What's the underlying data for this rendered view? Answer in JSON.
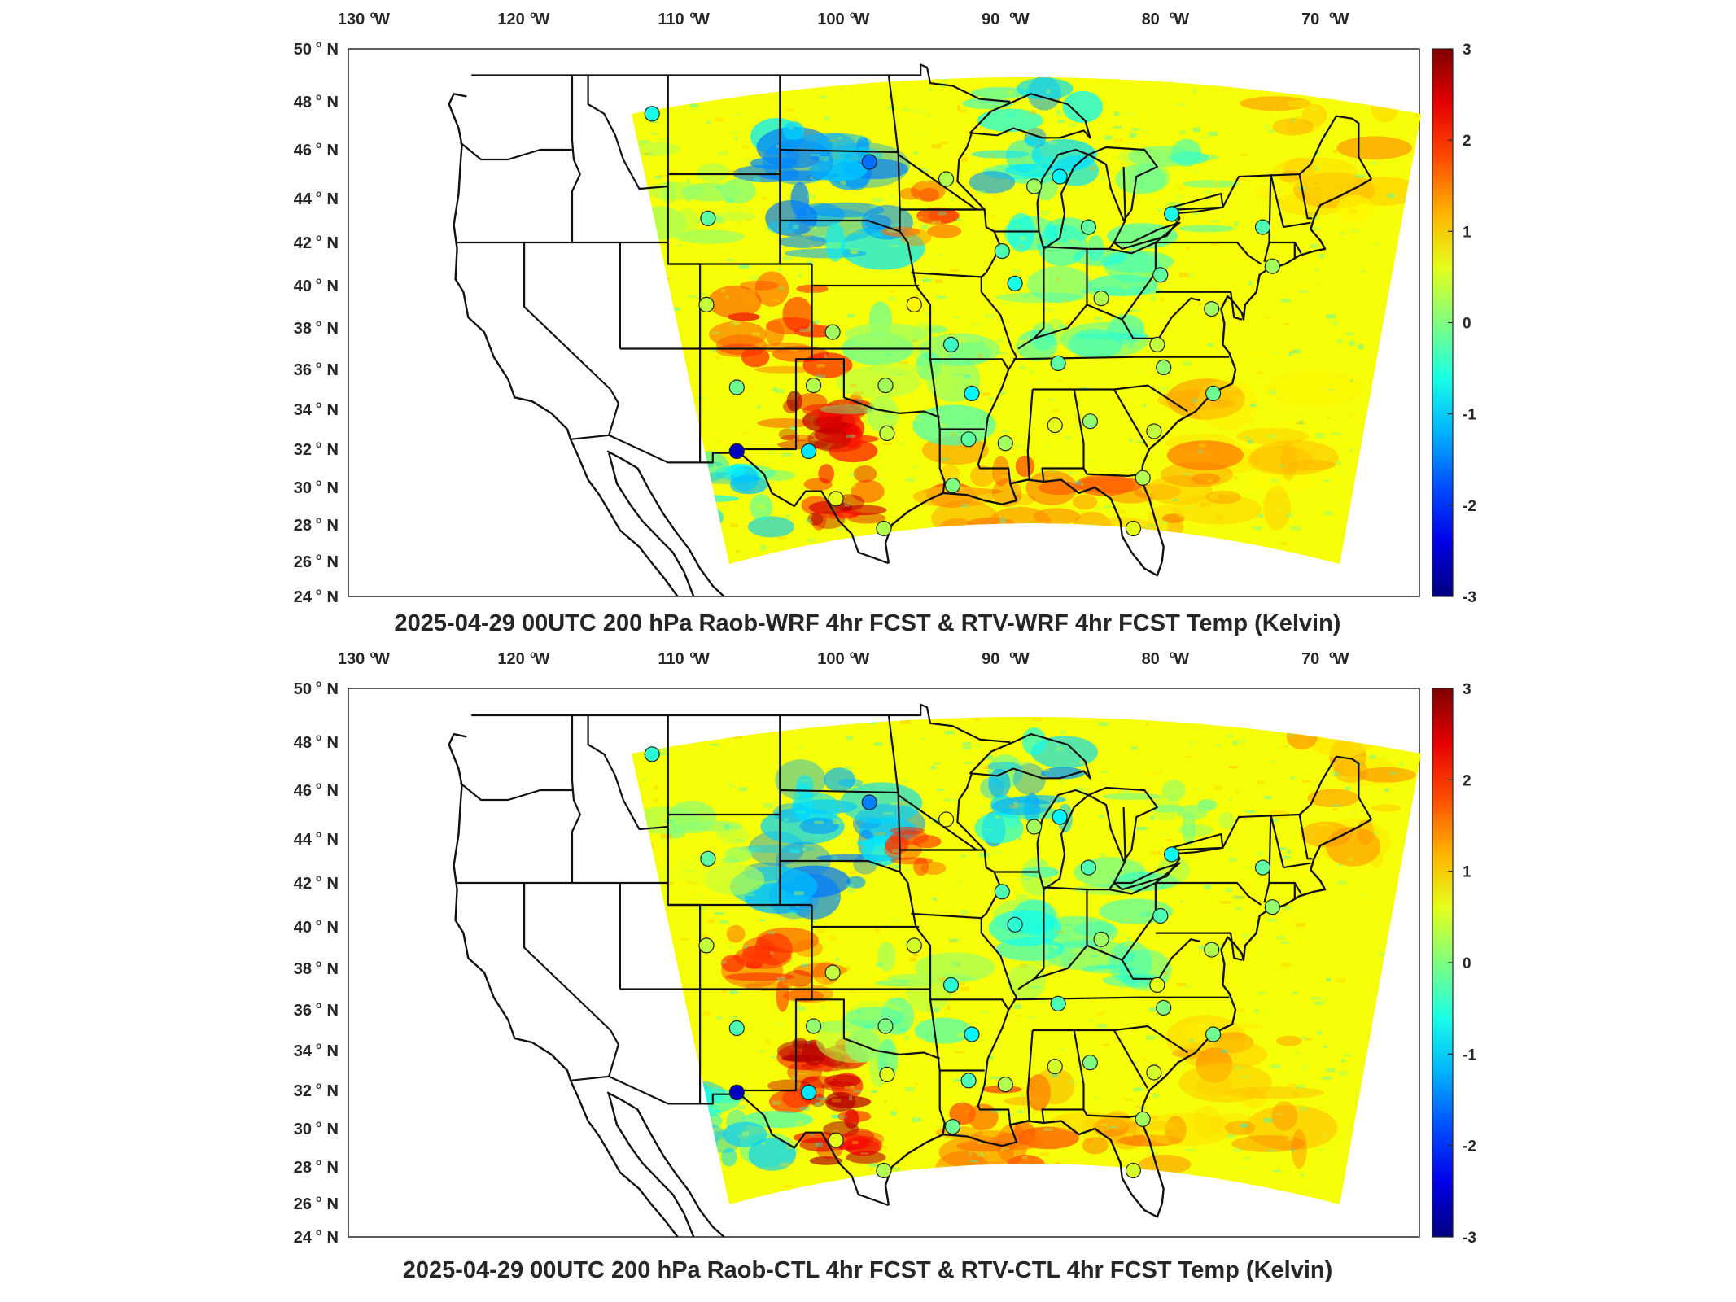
{
  "panels": [
    {
      "title": "2025-04-29 00UTC 200 hPa Raob-WRF 4hr FCST & RTV-WRF 4hr FCST Temp (Kelvin)",
      "stations": [
        {
          "lon": -112.0,
          "lat": 47.5,
          "v": -0.6
        },
        {
          "lon": -98.4,
          "lat": 45.5,
          "v": -1.6
        },
        {
          "lon": -93.6,
          "lat": 44.8,
          "v": 0.3
        },
        {
          "lon": -108.5,
          "lat": 43.1,
          "v": -0.2
        },
        {
          "lon": -90.1,
          "lat": 41.6,
          "v": -0.3
        },
        {
          "lon": -108.6,
          "lat": 39.1,
          "v": 0.4
        },
        {
          "lon": -95.6,
          "lat": 39.1,
          "v": 0.8
        },
        {
          "lon": -100.7,
          "lat": 37.8,
          "v": 0.2
        },
        {
          "lon": -89.3,
          "lat": 40.1,
          "v": -0.6
        },
        {
          "lon": -86.5,
          "lat": 44.9,
          "v": -0.8
        },
        {
          "lon": -84.7,
          "lat": 42.7,
          "v": -0.2
        },
        {
          "lon": -83.9,
          "lat": 39.4,
          "v": 0.3
        },
        {
          "lon": -80.2,
          "lat": 40.5,
          "v": -0.2
        },
        {
          "lon": -79.5,
          "lat": 43.3,
          "v": -0.6
        },
        {
          "lon": -73.8,
          "lat": 42.7,
          "v": -0.3
        },
        {
          "lon": -73.2,
          "lat": 40.9,
          "v": 0.2
        },
        {
          "lon": -77.0,
          "lat": 38.9,
          "v": 0.2
        },
        {
          "lon": -80.4,
          "lat": 37.2,
          "v": 0.4
        },
        {
          "lon": -86.6,
          "lat": 36.3,
          "v": -0.2
        },
        {
          "lon": -80.0,
          "lat": 36.1,
          "v": 0.1
        },
        {
          "lon": -76.9,
          "lat": 34.8,
          "v": -0.1
        },
        {
          "lon": -84.6,
          "lat": 33.4,
          "v": 0.1
        },
        {
          "lon": -86.8,
          "lat": 33.2,
          "v": 0.6
        },
        {
          "lon": -89.9,
          "lat": 32.3,
          "v": 0.2
        },
        {
          "lon": -92.2,
          "lat": 32.5,
          "v": -0.2
        },
        {
          "lon": -93.3,
          "lat": 37.2,
          "v": -0.4
        },
        {
          "lon": -92.0,
          "lat": 34.8,
          "v": -0.8
        },
        {
          "lon": -97.4,
          "lat": 35.2,
          "v": 0.2
        },
        {
          "lon": -97.3,
          "lat": 32.8,
          "v": 0.4
        },
        {
          "lon": -97.5,
          "lat": 27.8,
          "v": 0.3
        },
        {
          "lon": -93.2,
          "lat": 30.1,
          "v": 0.0
        },
        {
          "lon": -81.3,
          "lat": 30.5,
          "v": 0.3
        },
        {
          "lon": -81.9,
          "lat": 27.8,
          "v": 0.6
        },
        {
          "lon": -80.6,
          "lat": 32.9,
          "v": 0.4
        },
        {
          "lon": -101.9,
          "lat": 35.2,
          "v": 0.3
        },
        {
          "lon": -102.2,
          "lat": 31.9,
          "v": -0.9
        },
        {
          "lon": -100.5,
          "lat": 29.4,
          "v": 0.6
        },
        {
          "lon": -106.7,
          "lat": 31.9,
          "v": -2.6
        },
        {
          "lon": -106.7,
          "lat": 35.1,
          "v": -0.1
        },
        {
          "lon": -88.1,
          "lat": 44.5,
          "v": 0.2
        }
      ]
    },
    {
      "title": "2025-04-29 00UTC 200 hPa Raob-CTL 4hr FCST & RTV-CTL 4hr FCST Temp (Kelvin)",
      "stations": [
        {
          "lon": -112.0,
          "lat": 47.5,
          "v": -0.5
        },
        {
          "lon": -98.4,
          "lat": 45.5,
          "v": -1.5
        },
        {
          "lon": -93.6,
          "lat": 44.8,
          "v": 0.7
        },
        {
          "lon": -108.5,
          "lat": 43.1,
          "v": -0.2
        },
        {
          "lon": -90.1,
          "lat": 41.6,
          "v": -0.3
        },
        {
          "lon": -108.6,
          "lat": 39.1,
          "v": 0.4
        },
        {
          "lon": -95.6,
          "lat": 39.1,
          "v": 0.5
        },
        {
          "lon": -100.7,
          "lat": 37.8,
          "v": 0.4
        },
        {
          "lon": -89.3,
          "lat": 40.1,
          "v": -0.5
        },
        {
          "lon": -86.5,
          "lat": 44.9,
          "v": -0.8
        },
        {
          "lon": -84.7,
          "lat": 42.7,
          "v": -0.3
        },
        {
          "lon": -83.9,
          "lat": 39.4,
          "v": 0.2
        },
        {
          "lon": -80.2,
          "lat": 40.5,
          "v": -0.3
        },
        {
          "lon": -79.5,
          "lat": 43.3,
          "v": -0.7
        },
        {
          "lon": -73.8,
          "lat": 42.7,
          "v": -0.2
        },
        {
          "lon": -73.2,
          "lat": 40.9,
          "v": 0.1
        },
        {
          "lon": -77.0,
          "lat": 38.9,
          "v": 0.3
        },
        {
          "lon": -80.4,
          "lat": 37.2,
          "v": 0.6
        },
        {
          "lon": -86.6,
          "lat": 36.3,
          "v": -0.3
        },
        {
          "lon": -80.0,
          "lat": 36.1,
          "v": 0.0
        },
        {
          "lon": -76.9,
          "lat": 34.8,
          "v": -0.1
        },
        {
          "lon": -84.6,
          "lat": 33.4,
          "v": 0.0
        },
        {
          "lon": -86.8,
          "lat": 33.2,
          "v": 0.5
        },
        {
          "lon": -89.9,
          "lat": 32.3,
          "v": 0.3
        },
        {
          "lon": -92.2,
          "lat": 32.5,
          "v": -0.3
        },
        {
          "lon": -93.3,
          "lat": 37.2,
          "v": -0.5
        },
        {
          "lon": -92.0,
          "lat": 34.8,
          "v": -0.8
        },
        {
          "lon": -97.4,
          "lat": 35.2,
          "v": 0.0
        },
        {
          "lon": -97.3,
          "lat": 32.8,
          "v": 0.6
        },
        {
          "lon": -97.5,
          "lat": 27.8,
          "v": 0.3
        },
        {
          "lon": -93.2,
          "lat": 30.1,
          "v": -0.1
        },
        {
          "lon": -81.3,
          "lat": 30.5,
          "v": 0.2
        },
        {
          "lon": -81.9,
          "lat": 27.8,
          "v": 0.5
        },
        {
          "lon": -80.6,
          "lat": 32.9,
          "v": 0.5
        },
        {
          "lon": -101.9,
          "lat": 35.2,
          "v": 0.1
        },
        {
          "lon": -102.2,
          "lat": 31.9,
          "v": -0.9
        },
        {
          "lon": -100.5,
          "lat": 29.4,
          "v": 0.6
        },
        {
          "lon": -106.7,
          "lat": 31.9,
          "v": -2.6
        },
        {
          "lon": -106.7,
          "lat": 35.1,
          "v": -0.3
        },
        {
          "lon": -88.1,
          "lat": 44.5,
          "v": 0.2
        }
      ]
    }
  ],
  "map": {
    "lon_ticks": [
      "130",
      "120",
      "110",
      "100",
      "90",
      "80",
      "70"
    ],
    "lon_hemisphere": "W",
    "lat_ticks": [
      "50",
      "48",
      "46",
      "44",
      "42",
      "40",
      "38",
      "36",
      "34",
      "32",
      "30",
      "28",
      "26",
      "24"
    ],
    "lat_hemisphere": "N",
    "degree_symbol": "o",
    "lon_range": [
      -131,
      -64
    ],
    "lat_range": [
      24,
      50
    ]
  },
  "colorbar": {
    "colormap": "jet",
    "range": [
      -3,
      3
    ],
    "tick_labels": [
      "3",
      "2",
      "1",
      "0",
      "-1",
      "-2",
      "-3"
    ]
  }
}
